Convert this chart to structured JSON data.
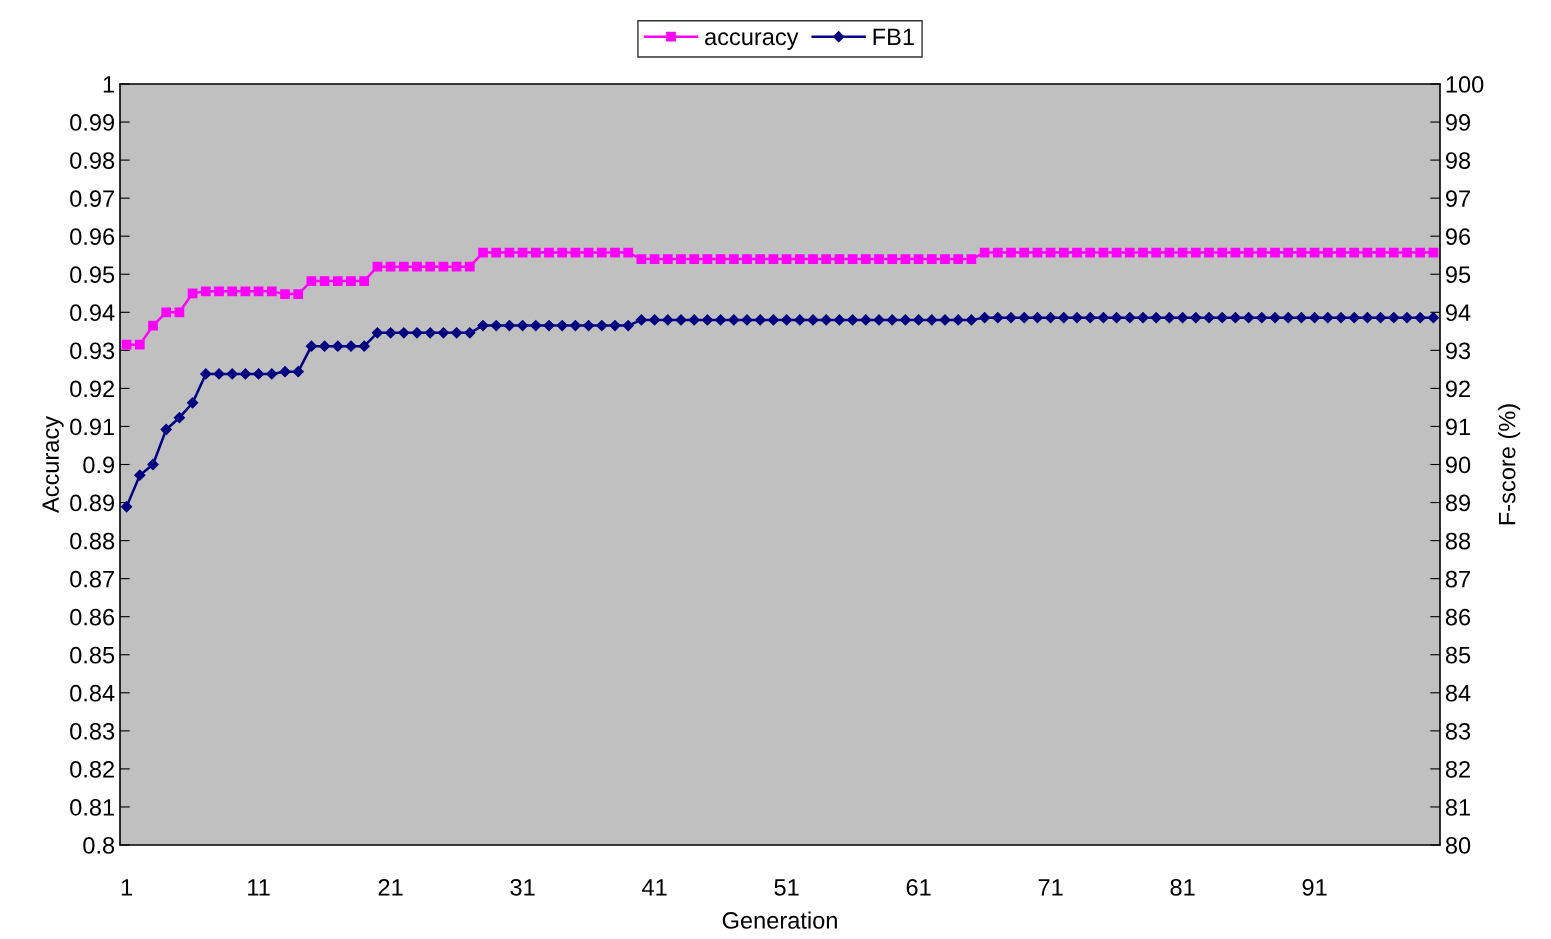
{
  "chart_data": {
    "type": "line",
    "xlabel": "Generation",
    "ylabel": "Accuracy",
    "y2label": "F-score (%)",
    "categories": [
      "1",
      null,
      null,
      null,
      null,
      null,
      null,
      null,
      null,
      null,
      "11",
      null,
      null,
      null,
      null,
      null,
      null,
      null,
      null,
      null,
      "21",
      null,
      null,
      null,
      null,
      null,
      null,
      null,
      null,
      null,
      "31",
      null,
      null,
      null,
      null,
      null,
      null,
      null,
      null,
      null,
      "41",
      null,
      null,
      null,
      null,
      null,
      null,
      null,
      null,
      null,
      "51",
      null,
      null,
      null,
      null,
      null,
      null,
      null,
      null,
      null,
      "61",
      null,
      null,
      null,
      null,
      null,
      null,
      null,
      null,
      null,
      "71",
      null,
      null,
      null,
      null,
      null,
      null,
      null,
      null,
      null,
      "81",
      null,
      null,
      null,
      null,
      null,
      null,
      null,
      null,
      null,
      "91",
      null,
      null,
      null,
      null,
      null,
      null,
      null,
      null,
      null
    ],
    "series": [
      {
        "name": "accuracy",
        "color": "#ff00ff",
        "marker": "square",
        "values": [
          0.9315,
          0.9315,
          0.9365,
          0.94,
          0.94,
          0.945,
          0.9455,
          0.9455,
          0.9455,
          0.9455,
          0.9455,
          0.9455,
          0.9448,
          0.9448,
          0.9482,
          0.9482,
          0.9482,
          0.9482,
          0.9482,
          0.952,
          0.952,
          0.952,
          0.952,
          0.952,
          0.952,
          0.952,
          0.952,
          0.9557,
          0.9557,
          0.9557,
          0.9557,
          0.9557,
          0.9557,
          0.9557,
          0.9557,
          0.9557,
          0.9557,
          0.9557,
          0.9557,
          0.954,
          0.954,
          0.954,
          0.954,
          0.954,
          0.954,
          0.954,
          0.954,
          0.954,
          0.954,
          0.954,
          0.954,
          0.954,
          0.954,
          0.954,
          0.954,
          0.954,
          0.954,
          0.954,
          0.954,
          0.954,
          0.954,
          0.954,
          0.954,
          0.954,
          0.954,
          0.9557,
          0.9557,
          0.9557,
          0.9557,
          0.9557,
          0.9557,
          0.9557,
          0.9557,
          0.9557,
          0.9557,
          0.9557,
          0.9557,
          0.9557,
          0.9557,
          0.9557,
          0.9557,
          0.9557,
          0.9557,
          0.9557,
          0.9557,
          0.9557,
          0.9557,
          0.9557,
          0.9557,
          0.9557,
          0.9557,
          0.9557,
          0.9557,
          0.9557,
          0.9557,
          0.9557,
          0.9557,
          0.9557,
          0.9557,
          0.9557
        ]
      },
      {
        "name": "FB1",
        "color": "#000080",
        "marker": "diamond",
        "axis": "y2",
        "values": [
          88.89,
          89.72,
          90.0,
          90.92,
          91.23,
          91.62,
          92.38,
          92.38,
          92.38,
          92.38,
          92.38,
          92.38,
          92.44,
          92.44,
          93.11,
          93.11,
          93.11,
          93.11,
          93.11,
          93.46,
          93.46,
          93.46,
          93.46,
          93.46,
          93.46,
          93.46,
          93.46,
          93.65,
          93.65,
          93.65,
          93.65,
          93.65,
          93.65,
          93.65,
          93.65,
          93.65,
          93.65,
          93.65,
          93.65,
          93.8,
          93.8,
          93.8,
          93.8,
          93.8,
          93.8,
          93.8,
          93.8,
          93.8,
          93.8,
          93.8,
          93.8,
          93.8,
          93.8,
          93.8,
          93.8,
          93.8,
          93.8,
          93.8,
          93.8,
          93.8,
          93.8,
          93.8,
          93.8,
          93.8,
          93.8,
          93.86,
          93.86,
          93.86,
          93.86,
          93.86,
          93.86,
          93.86,
          93.86,
          93.86,
          93.86,
          93.86,
          93.86,
          93.86,
          93.86,
          93.86,
          93.86,
          93.86,
          93.86,
          93.86,
          93.86,
          93.86,
          93.86,
          93.86,
          93.86,
          93.86,
          93.86,
          93.86,
          93.86,
          93.86,
          93.86,
          93.86,
          93.86,
          93.86,
          93.86,
          93.86
        ]
      }
    ],
    "ylim": [
      0.8,
      1
    ],
    "yticks": [
      0.8,
      0.81,
      0.82,
      0.83,
      0.84,
      0.85,
      0.86,
      0.87,
      0.88,
      0.89,
      0.9,
      0.91,
      0.92,
      0.93,
      0.94,
      0.95,
      0.96,
      0.97,
      0.98,
      0.99,
      1
    ],
    "y2lim": [
      80,
      100
    ],
    "y2ticks": [
      80,
      81,
      82,
      83,
      84,
      85,
      86,
      87,
      88,
      89,
      90,
      91,
      92,
      93,
      94,
      95,
      96,
      97,
      98,
      99,
      100
    ],
    "grid": false,
    "legend": "top",
    "line_style": "solid"
  }
}
